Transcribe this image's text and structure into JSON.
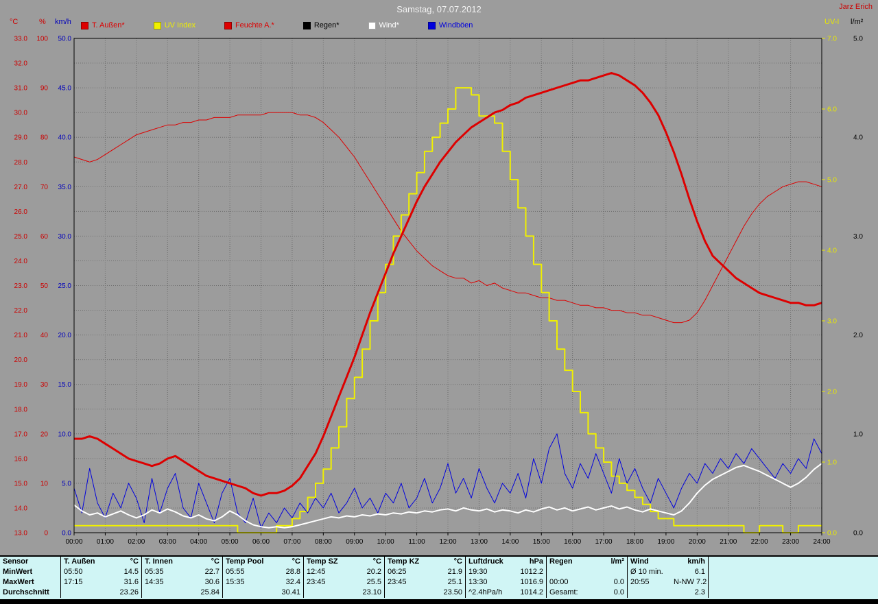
{
  "header": {
    "title": "Samstag, 07.07.2012",
    "station": "Jarz Erich"
  },
  "axis_labels": {
    "temp": "°C",
    "humidity": "%",
    "wind": "km/h",
    "uv": "UV-I",
    "rain": "l/m²"
  },
  "legend": [
    {
      "label": "T. Außen*",
      "color": "#dd0000"
    },
    {
      "label": "UV Index",
      "color": "#f0f000"
    },
    {
      "label": "Feuchte A.*",
      "color": "#dd0000"
    },
    {
      "label": "Regen*",
      "color": "#000000"
    },
    {
      "label": "Wind*",
      "color": "#ffffff"
    },
    {
      "label": "Windböen",
      "color": "#0000dd"
    }
  ],
  "chart_data": {
    "type": "line",
    "title": "Samstag, 07.07.2012",
    "x_start": 0,
    "x_step": 0.25,
    "x_ticks": [
      "00:00",
      "01:00",
      "02:00",
      "03:00",
      "04:00",
      "05:00",
      "06:00",
      "07:00",
      "08:00",
      "09:00",
      "10:00",
      "11:00",
      "12:00",
      "13:00",
      "14:00",
      "15:00",
      "16:00",
      "17:00",
      "18:00",
      "19:00",
      "20:00",
      "21:00",
      "22:00",
      "23:00",
      "24:00"
    ],
    "grid": true,
    "axes": {
      "temp_c": {
        "min": 13,
        "max": 33,
        "unit": "°C",
        "ticks": [
          "33.0",
          "32.0",
          "31.0",
          "30.0",
          "29.0",
          "28.0",
          "27.0",
          "26.0",
          "25.0",
          "24.0",
          "23.0",
          "22.0",
          "21.0",
          "20.0",
          "19.0",
          "18.0",
          "17.0",
          "16.0",
          "15.0",
          "14.0",
          "13.0"
        ]
      },
      "humidity_pct": {
        "min": 0,
        "max": 100,
        "unit": "%",
        "ticks": [
          "100",
          "90",
          "80",
          "70",
          "60",
          "50",
          "40",
          "30",
          "20",
          "10",
          "0"
        ]
      },
      "wind_kmh": {
        "min": 0,
        "max": 50,
        "unit": "km/h",
        "ticks": [
          "50.0",
          "45.0",
          "40.0",
          "35.0",
          "30.0",
          "25.0",
          "20.0",
          "15.0",
          "10.0",
          "5.0",
          "0.0"
        ]
      },
      "uv": {
        "min": 0,
        "max": 7,
        "unit": "UV-I",
        "ticks": [
          "7.0",
          "6.0",
          "5.0",
          "4.0",
          "3.0",
          "2.0",
          "1.0",
          "0.0"
        ]
      },
      "rain_lm2": {
        "min": 0,
        "max": 5,
        "unit": "l/m²",
        "ticks": [
          "5.0",
          "4.0",
          "3.0",
          "2.0",
          "1.0",
          "0.0"
        ]
      }
    },
    "series": [
      {
        "name": "Regen",
        "axis": "rain_lm2",
        "color": "#000000",
        "width": 1,
        "values": [
          0,
          0,
          0,
          0,
          0,
          0,
          0,
          0,
          0,
          0,
          0,
          0,
          0,
          0,
          0,
          0,
          0,
          0,
          0,
          0,
          0,
          0,
          0,
          0,
          0,
          0,
          0,
          0,
          0,
          0,
          0,
          0,
          0,
          0,
          0,
          0,
          0,
          0,
          0,
          0,
          0,
          0,
          0,
          0,
          0,
          0,
          0,
          0,
          0,
          0,
          0,
          0,
          0,
          0,
          0,
          0,
          0,
          0,
          0,
          0,
          0,
          0,
          0,
          0,
          0,
          0,
          0,
          0,
          0,
          0,
          0,
          0,
          0,
          0,
          0,
          0,
          0,
          0,
          0,
          0,
          0,
          0,
          0,
          0,
          0,
          0,
          0,
          0,
          0,
          0,
          0,
          0,
          0,
          0,
          0,
          0,
          0
        ]
      },
      {
        "name": "Feuchte A.",
        "axis": "humidity_pct",
        "color": "#dd0000",
        "width": 1,
        "values": [
          76,
          75.5,
          75,
          75.5,
          76.5,
          77.5,
          78.5,
          79.5,
          80.5,
          81,
          81.5,
          82,
          82.5,
          82.5,
          83,
          83,
          83.5,
          83.5,
          84,
          84,
          84,
          84.5,
          84.5,
          84.5,
          84.5,
          85,
          85,
          85,
          85,
          84.5,
          84.5,
          84,
          83,
          81.5,
          80,
          78,
          76,
          73.5,
          71,
          68.5,
          66,
          63.5,
          61,
          59,
          57,
          55.5,
          54,
          53,
          52,
          51.5,
          51.5,
          50.5,
          51,
          50,
          50.5,
          49.5,
          49,
          48.5,
          48.5,
          48,
          47.5,
          47.5,
          47,
          47,
          46.5,
          46,
          46,
          45.5,
          45.5,
          45,
          45,
          44.5,
          44.5,
          44,
          44,
          43.5,
          43,
          42.5,
          42.5,
          43,
          44.5,
          47,
          50,
          53,
          56,
          59,
          62,
          64.5,
          66.5,
          68,
          69,
          70,
          70.5,
          71,
          71,
          70.5,
          70
        ]
      },
      {
        "name": "UV Index",
        "axis": "uv",
        "color": "#f0f000",
        "width": 2,
        "step": true,
        "values": [
          0.1,
          0.1,
          0.1,
          0.1,
          0.1,
          0.1,
          0.1,
          0.1,
          0.1,
          0.1,
          0.1,
          0.1,
          0.1,
          0.1,
          0.1,
          0.1,
          0.1,
          0.1,
          0.1,
          0.1,
          0.1,
          0,
          0,
          0,
          0,
          0,
          0.1,
          0.1,
          0.2,
          0.3,
          0.5,
          0.7,
          0.9,
          1.2,
          1.5,
          1.9,
          2.2,
          2.6,
          3.0,
          3.4,
          3.8,
          4.2,
          4.5,
          4.8,
          5.1,
          5.4,
          5.6,
          5.8,
          6.0,
          6.3,
          6.3,
          6.2,
          5.9,
          5.9,
          5.8,
          5.4,
          5.0,
          4.6,
          4.2,
          3.8,
          3.4,
          3.0,
          2.6,
          2.3,
          2.0,
          1.7,
          1.4,
          1.2,
          1.0,
          0.8,
          0.7,
          0.6,
          0.5,
          0.4,
          0.3,
          0.2,
          0.2,
          0.1,
          0.1,
          0.1,
          0.1,
          0.1,
          0.1,
          0.1,
          0.1,
          0.1,
          0,
          0,
          0.1,
          0.1,
          0.1,
          0,
          0,
          0.1,
          0.1,
          0.1,
          0.1
        ]
      },
      {
        "name": "Windböen",
        "axis": "wind_kmh",
        "color": "#0000dd",
        "width": 1,
        "values": [
          4.5,
          2.0,
          6.5,
          3.0,
          1.5,
          4.0,
          2.5,
          5.0,
          3.5,
          1.0,
          5.5,
          2.0,
          4.5,
          6.0,
          2.5,
          1.5,
          5.0,
          3.0,
          1.0,
          4.0,
          5.5,
          2.0,
          1.0,
          3.5,
          0.5,
          2.0,
          1.0,
          2.5,
          1.5,
          3.0,
          2.0,
          3.5,
          2.5,
          4.0,
          2.0,
          3.0,
          4.5,
          2.5,
          3.5,
          2.0,
          4.0,
          3.0,
          5.0,
          2.5,
          3.5,
          5.5,
          3.0,
          4.5,
          7.0,
          4.0,
          5.5,
          3.5,
          6.5,
          4.5,
          3.0,
          5.0,
          4.0,
          6.0,
          3.5,
          7.5,
          5.0,
          8.5,
          10.0,
          6.0,
          4.5,
          7.0,
          5.5,
          8.0,
          6.0,
          4.0,
          7.5,
          5.0,
          6.5,
          4.5,
          3.0,
          5.5,
          4.0,
          2.5,
          4.5,
          6.0,
          5.0,
          7.0,
          6.0,
          7.5,
          6.5,
          8.0,
          7.0,
          8.5,
          7.5,
          6.5,
          5.5,
          7.0,
          6.0,
          7.5,
          6.5,
          9.5,
          8.0
        ]
      },
      {
        "name": "Wind",
        "axis": "wind_kmh",
        "color": "#ffffff",
        "width": 2,
        "values": [
          2.8,
          2.2,
          1.8,
          2.0,
          1.6,
          1.9,
          2.2,
          1.8,
          1.5,
          1.8,
          2.3,
          2.0,
          2.4,
          2.1,
          1.7,
          1.5,
          1.8,
          1.4,
          1.2,
          1.6,
          2.2,
          1.8,
          1.2,
          0.8,
          0.6,
          0.5,
          0.6,
          0.5,
          0.6,
          0.8,
          1.0,
          1.2,
          1.4,
          1.6,
          1.5,
          1.7,
          1.6,
          1.8,
          1.7,
          1.9,
          1.8,
          2.0,
          1.9,
          2.1,
          2.0,
          2.2,
          2.1,
          2.3,
          2.4,
          2.2,
          2.5,
          2.3,
          2.2,
          2.4,
          2.1,
          2.3,
          2.2,
          2.0,
          2.3,
          2.1,
          2.4,
          2.6,
          2.3,
          2.5,
          2.2,
          2.4,
          2.6,
          2.3,
          2.5,
          2.7,
          2.4,
          2.6,
          2.3,
          2.1,
          2.4,
          2.2,
          2.0,
          1.8,
          2.2,
          3.0,
          4.0,
          4.8,
          5.4,
          5.8,
          6.2,
          6.6,
          6.8,
          6.5,
          6.2,
          5.8,
          5.4,
          5.0,
          4.6,
          5.0,
          5.6,
          6.4,
          7.0
        ]
      },
      {
        "name": "T. Außen",
        "axis": "temp_c",
        "color": "#dd0000",
        "width": 3,
        "values": [
          16.8,
          16.8,
          16.9,
          16.8,
          16.6,
          16.4,
          16.2,
          16.0,
          15.9,
          15.8,
          15.7,
          15.8,
          16.0,
          16.1,
          15.9,
          15.7,
          15.5,
          15.3,
          15.2,
          15.1,
          15.0,
          14.9,
          14.8,
          14.6,
          14.5,
          14.6,
          14.6,
          14.7,
          14.9,
          15.2,
          15.7,
          16.2,
          16.9,
          17.7,
          18.5,
          19.3,
          20.1,
          21.0,
          21.9,
          22.7,
          23.5,
          24.3,
          25.0,
          25.7,
          26.4,
          27.0,
          27.5,
          28.0,
          28.4,
          28.8,
          29.1,
          29.4,
          29.6,
          29.8,
          30.0,
          30.1,
          30.3,
          30.4,
          30.6,
          30.7,
          30.8,
          30.9,
          31.0,
          31.1,
          31.2,
          31.3,
          31.3,
          31.4,
          31.5,
          31.6,
          31.5,
          31.3,
          31.1,
          30.8,
          30.4,
          29.9,
          29.2,
          28.4,
          27.5,
          26.5,
          25.6,
          24.8,
          24.2,
          23.9,
          23.6,
          23.3,
          23.1,
          22.9,
          22.7,
          22.6,
          22.5,
          22.4,
          22.3,
          22.3,
          22.2,
          22.2,
          22.3
        ]
      }
    ]
  },
  "table": {
    "row_labels": [
      "Sensor",
      "MinWert",
      "MaxWert",
      "Durchschnitt"
    ],
    "groups": [
      {
        "name": "T. Außen",
        "unit": "°C",
        "min": [
          "05:50",
          "14.5"
        ],
        "max": [
          "17:15",
          "31.6"
        ],
        "avg": [
          "",
          "23.26"
        ]
      },
      {
        "name": "T. Innen",
        "unit": "°C",
        "min": [
          "05:35",
          "22.7"
        ],
        "max": [
          "14:35",
          "30.6"
        ],
        "avg": [
          "",
          "25.84"
        ]
      },
      {
        "name": "Temp Pool",
        "unit": "°C",
        "min": [
          "05:55",
          "28.8"
        ],
        "max": [
          "15:35",
          "32.4"
        ],
        "avg": [
          "",
          "30.41"
        ]
      },
      {
        "name": "Temp SZ",
        "unit": "°C",
        "min": [
          "12:45",
          "20.2"
        ],
        "max": [
          "23:45",
          "25.5"
        ],
        "avg": [
          "",
          "23.10"
        ]
      },
      {
        "name": "Temp KZ",
        "unit": "°C",
        "min": [
          "06:25",
          "21.9"
        ],
        "max": [
          "23:45",
          "25.1"
        ],
        "avg": [
          "",
          "23.50"
        ]
      },
      {
        "name": "Luftdruck",
        "unit": "hPa",
        "min": [
          "19:30",
          "1012.2"
        ],
        "max": [
          "13:30",
          "1016.9"
        ],
        "avg": [
          "^2.4hPa/h",
          "1014.2"
        ]
      },
      {
        "name": "Regen",
        "unit": "l/m²",
        "min": [
          "",
          ""
        ],
        "max": [
          "00:00",
          "0.0"
        ],
        "avg": [
          "Gesamt:",
          "0.0"
        ]
      },
      {
        "name": "Wind",
        "unit": "km/h",
        "min": [
          "Ø 10 min.",
          "6.1"
        ],
        "max": [
          "20:55",
          "N-NW 7.2"
        ],
        "avg": [
          "",
          "2.3"
        ]
      }
    ]
  }
}
